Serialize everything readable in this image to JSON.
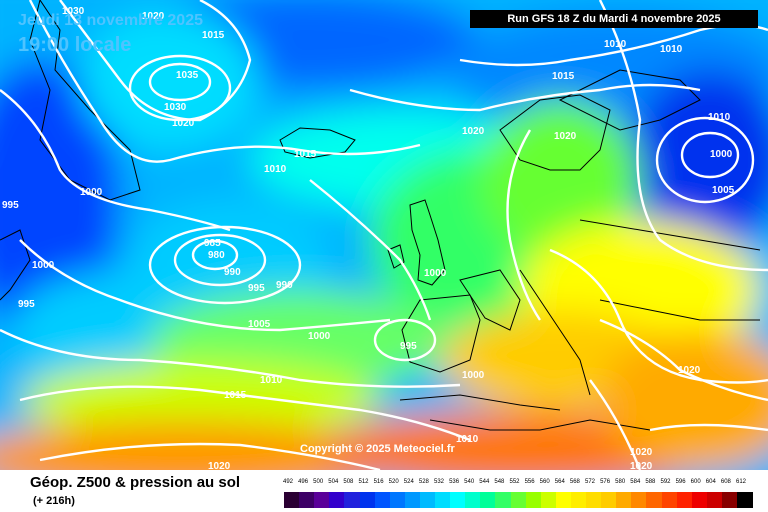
{
  "header": {
    "date_label": "Jeudi 13 novembre 2025",
    "time_label": "19:00 locale",
    "run_label": "Run GFS 18 Z du Mardi 4 novembre 2025"
  },
  "copyright": "Copyright © 2025 Meteociel.fr",
  "footer": {
    "title": "Géop. Z500 & pression au sol",
    "subtitle": "(+ 216h)"
  },
  "legend": {
    "values": [
      "492",
      "496",
      "500",
      "504",
      "508",
      "512",
      "516",
      "520",
      "524",
      "528",
      "532",
      "536",
      "540",
      "544",
      "548",
      "552",
      "556",
      "560",
      "564",
      "568",
      "572",
      "576",
      "580",
      "584",
      "588",
      "592",
      "596",
      "600",
      "604",
      "608",
      "612"
    ],
    "colors": [
      "#2b0033",
      "#3d0066",
      "#5a0099",
      "#3300cc",
      "#2222dd",
      "#0033ee",
      "#0055ff",
      "#0077ff",
      "#0099ff",
      "#00bbff",
      "#00ddff",
      "#00ffff",
      "#00ffcc",
      "#00ff99",
      "#33ff66",
      "#66ff33",
      "#99ff00",
      "#ccff00",
      "#ffff00",
      "#ffee00",
      "#ffdd00",
      "#ffcc00",
      "#ffaa00",
      "#ff8800",
      "#ff6600",
      "#ff4400",
      "#ff2200",
      "#ee0000",
      "#cc0000",
      "#880000",
      "#000000"
    ]
  },
  "isobar_labels": [
    "1030",
    "1020",
    "1015",
    "1035",
    "1030",
    "1020",
    "1000",
    "995",
    "1000",
    "995",
    "1010",
    "1015",
    "1020",
    "1015",
    "1020",
    "1010",
    "1010",
    "1010",
    "1000",
    "1005",
    "985",
    "980",
    "990",
    "995",
    "990",
    "1005",
    "1000",
    "995",
    "1000",
    "1010",
    "1015",
    "1000",
    "1010",
    "1020",
    "1020",
    "1020",
    "1020"
  ],
  "colors": {
    "title_text": "#4fc3ff",
    "contour": "#ffffff",
    "coast": "#000000"
  }
}
